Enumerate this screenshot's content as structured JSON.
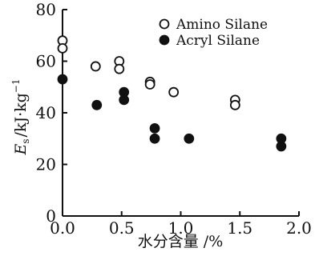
{
  "chart_data": {
    "type": "scatter",
    "xlabel": "水分含量 /%",
    "ylabel": "E_s /kJ·kg⁻¹",
    "ylabel_parts": {
      "symbol": "E",
      "sub": "s",
      "unit": "/kJ·kg",
      "sup": "−1"
    },
    "xlim": [
      0.0,
      2.0
    ],
    "ylim": [
      0,
      80
    ],
    "x_ticks": [
      0.0,
      0.5,
      1.0,
      1.5,
      2.0
    ],
    "x_tick_labels": [
      "0.0",
      "0.5",
      "1.0",
      "1.5",
      "2.0"
    ],
    "y_ticks": [
      0,
      20,
      40,
      60,
      80
    ],
    "y_tick_labels": [
      "0",
      "20",
      "40",
      "60",
      "80"
    ],
    "legend_position": "top-right",
    "series": [
      {
        "name": "Amino Silane",
        "marker": "open-circle",
        "color": "#111111",
        "points": [
          {
            "x": 0.0,
            "y": 68
          },
          {
            "x": 0.0,
            "y": 65
          },
          {
            "x": 0.28,
            "y": 58
          },
          {
            "x": 0.48,
            "y": 60
          },
          {
            "x": 0.48,
            "y": 57
          },
          {
            "x": 0.74,
            "y": 52
          },
          {
            "x": 0.74,
            "y": 51
          },
          {
            "x": 0.94,
            "y": 48
          },
          {
            "x": 1.46,
            "y": 45
          },
          {
            "x": 1.46,
            "y": 43
          }
        ]
      },
      {
        "name": "Acryl Silane",
        "marker": "filled-circle",
        "color": "#111111",
        "points": [
          {
            "x": 0.0,
            "y": 53
          },
          {
            "x": 0.29,
            "y": 43
          },
          {
            "x": 0.52,
            "y": 48
          },
          {
            "x": 0.52,
            "y": 45
          },
          {
            "x": 0.78,
            "y": 34
          },
          {
            "x": 0.78,
            "y": 30
          },
          {
            "x": 1.07,
            "y": 30
          },
          {
            "x": 1.85,
            "y": 30
          },
          {
            "x": 1.85,
            "y": 27
          }
        ]
      }
    ]
  }
}
